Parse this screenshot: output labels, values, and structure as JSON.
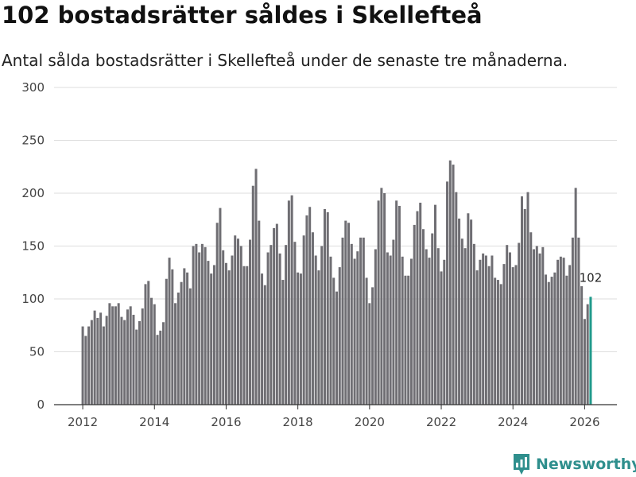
{
  "title": "102 bostadsrätter såldes i Skellefteå",
  "subtitle": "Antal sålda bostadsrätter i Skellefteå under de senaste tre månaderna.",
  "brand": {
    "name": "Newsworthy",
    "color": "#2f8f8d",
    "icon": "newsworthy-logo-icon"
  },
  "colors": {
    "bar": "#6f6e73",
    "highlight": "#1f9a8b",
    "grid": "#dddddd",
    "axis": "#333333"
  },
  "chart_data": {
    "type": "bar",
    "title": "102 bostadsrätter såldes i Skellefteå",
    "subtitle": "Antal sålda bostadsrätter i Skellefteå under de senaste tre månaderna.",
    "xlabel": "",
    "ylabel": "",
    "ylim": [
      0,
      300
    ],
    "yticks": [
      0,
      50,
      100,
      150,
      200,
      250,
      300
    ],
    "grid": true,
    "x_start": "2012-01",
    "x_range": [
      2011.2,
      2026.9
    ],
    "xticks": [
      2012,
      2014,
      2016,
      2018,
      2020,
      2022,
      2024,
      2026
    ],
    "highlight_last": true,
    "annotation": {
      "label": "102",
      "value": 102
    },
    "values": [
      74,
      65,
      74,
      80,
      89,
      82,
      87,
      74,
      84,
      96,
      93,
      93,
      96,
      83,
      80,
      90,
      93,
      85,
      71,
      79,
      91,
      114,
      117,
      101,
      95,
      66,
      70,
      78,
      119,
      139,
      128,
      96,
      106,
      116,
      129,
      125,
      110,
      150,
      152,
      144,
      152,
      149,
      136,
      124,
      132,
      172,
      186,
      146,
      134,
      127,
      141,
      160,
      157,
      150,
      131,
      131,
      156,
      207,
      223,
      174,
      124,
      113,
      144,
      151,
      167,
      171,
      143,
      118,
      151,
      193,
      198,
      154,
      125,
      124,
      160,
      179,
      187,
      163,
      141,
      127,
      150,
      185,
      182,
      140,
      120,
      107,
      130,
      158,
      174,
      172,
      152,
      138,
      145,
      158,
      158,
      120,
      96,
      111,
      147,
      193,
      205,
      200,
      144,
      141,
      156,
      193,
      188,
      140,
      122,
      122,
      138,
      170,
      183,
      191,
      166,
      147,
      139,
      162,
      189,
      148,
      126,
      137,
      211,
      231,
      227,
      201,
      176,
      157,
      148,
      181,
      175,
      152,
      127,
      137,
      143,
      141,
      131,
      141,
      120,
      118,
      114,
      133,
      151,
      144,
      130,
      132,
      153,
      197,
      185,
      201,
      163,
      147,
      150,
      143,
      149,
      123,
      116,
      121,
      125,
      137,
      140,
      139,
      122,
      132,
      158,
      205,
      158,
      112,
      81,
      95,
      102
    ]
  }
}
